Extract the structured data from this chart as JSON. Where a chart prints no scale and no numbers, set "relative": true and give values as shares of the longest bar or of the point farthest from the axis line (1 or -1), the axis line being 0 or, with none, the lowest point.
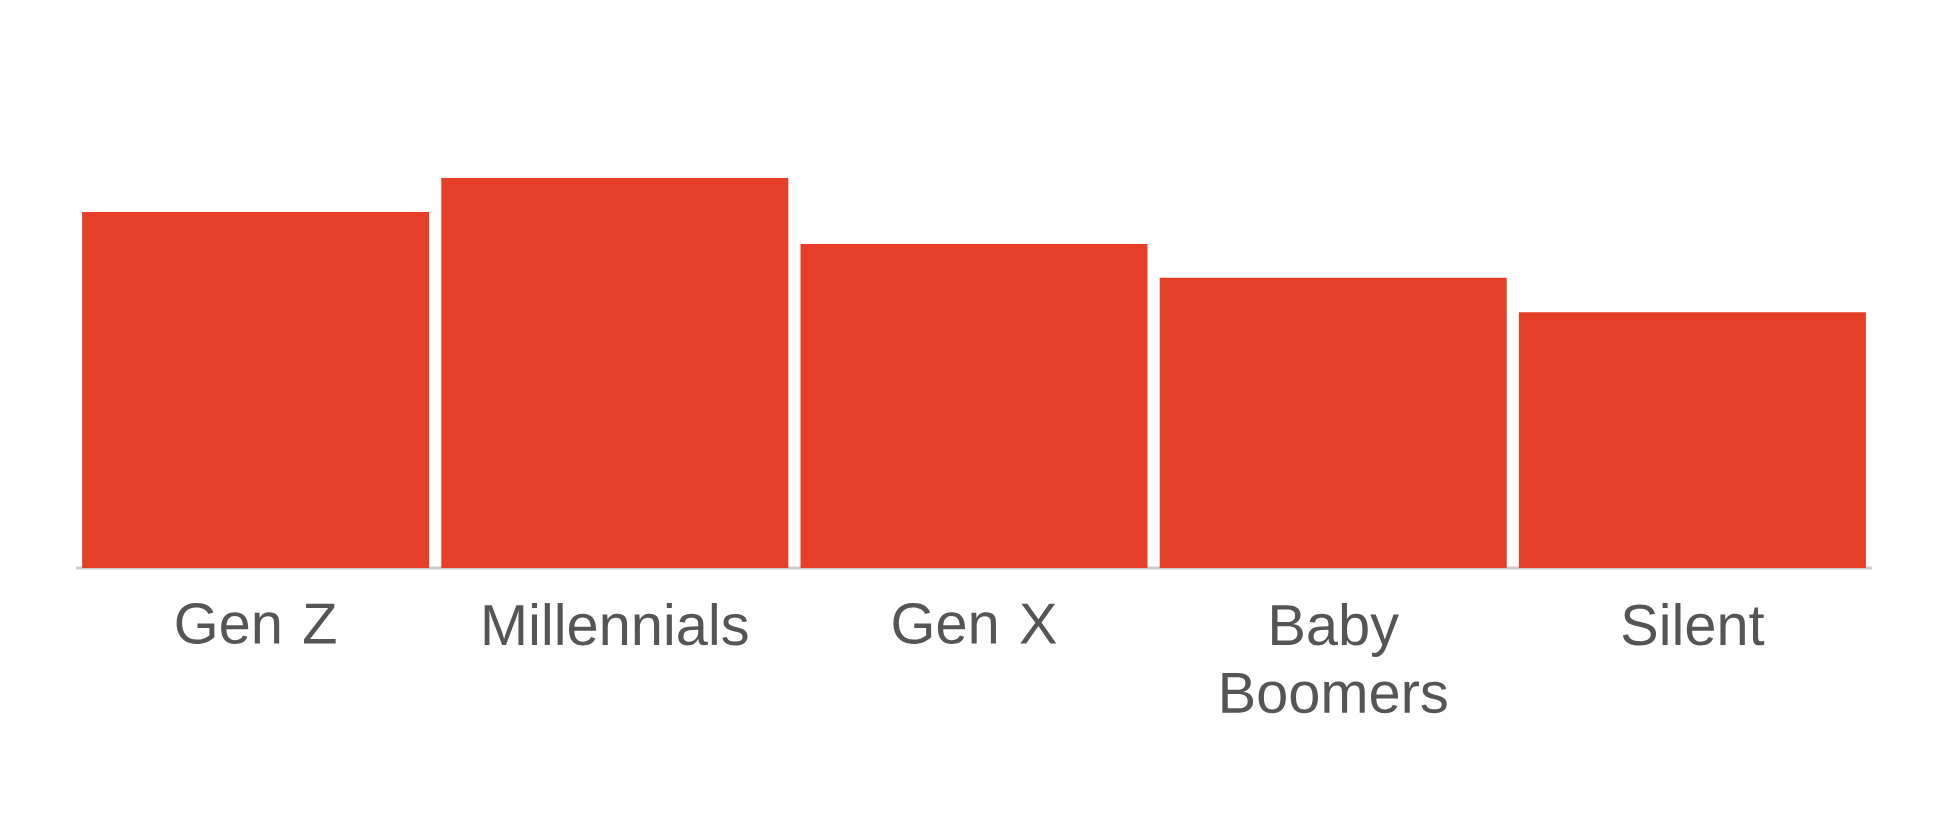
{
  "chart_data": {
    "type": "bar",
    "relative": true,
    "categories": [
      "Gen Z",
      "Millennials",
      "Gen X",
      "Baby Boomers",
      "Silent"
    ],
    "values": [
      0.913,
      1,
      0.831,
      0.744,
      0.656
    ],
    "color": "#e54027"
  }
}
